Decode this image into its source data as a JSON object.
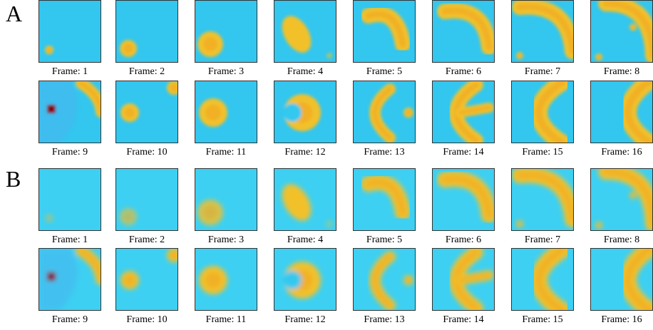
{
  "panels": [
    {
      "label": "A",
      "frames": [
        "Frame: 1",
        "Frame: 2",
        "Frame: 3",
        "Frame: 4",
        "Frame: 5",
        "Frame: 6",
        "Frame: 7",
        "Frame: 8",
        "Frame: 9",
        "Frame: 10",
        "Frame: 11",
        "Frame: 12",
        "Frame: 13",
        "Frame: 14",
        "Frame: 15",
        "Frame: 16"
      ]
    },
    {
      "label": "B",
      "frames": [
        "Frame: 1",
        "Frame: 2",
        "Frame: 3",
        "Frame: 4",
        "Frame: 5",
        "Frame: 6",
        "Frame: 7",
        "Frame: 8",
        "Frame: 9",
        "Frame: 10",
        "Frame: 11",
        "Frame: 12",
        "Frame: 13",
        "Frame: 14",
        "Frame: 15",
        "Frame: 16"
      ]
    }
  ]
}
